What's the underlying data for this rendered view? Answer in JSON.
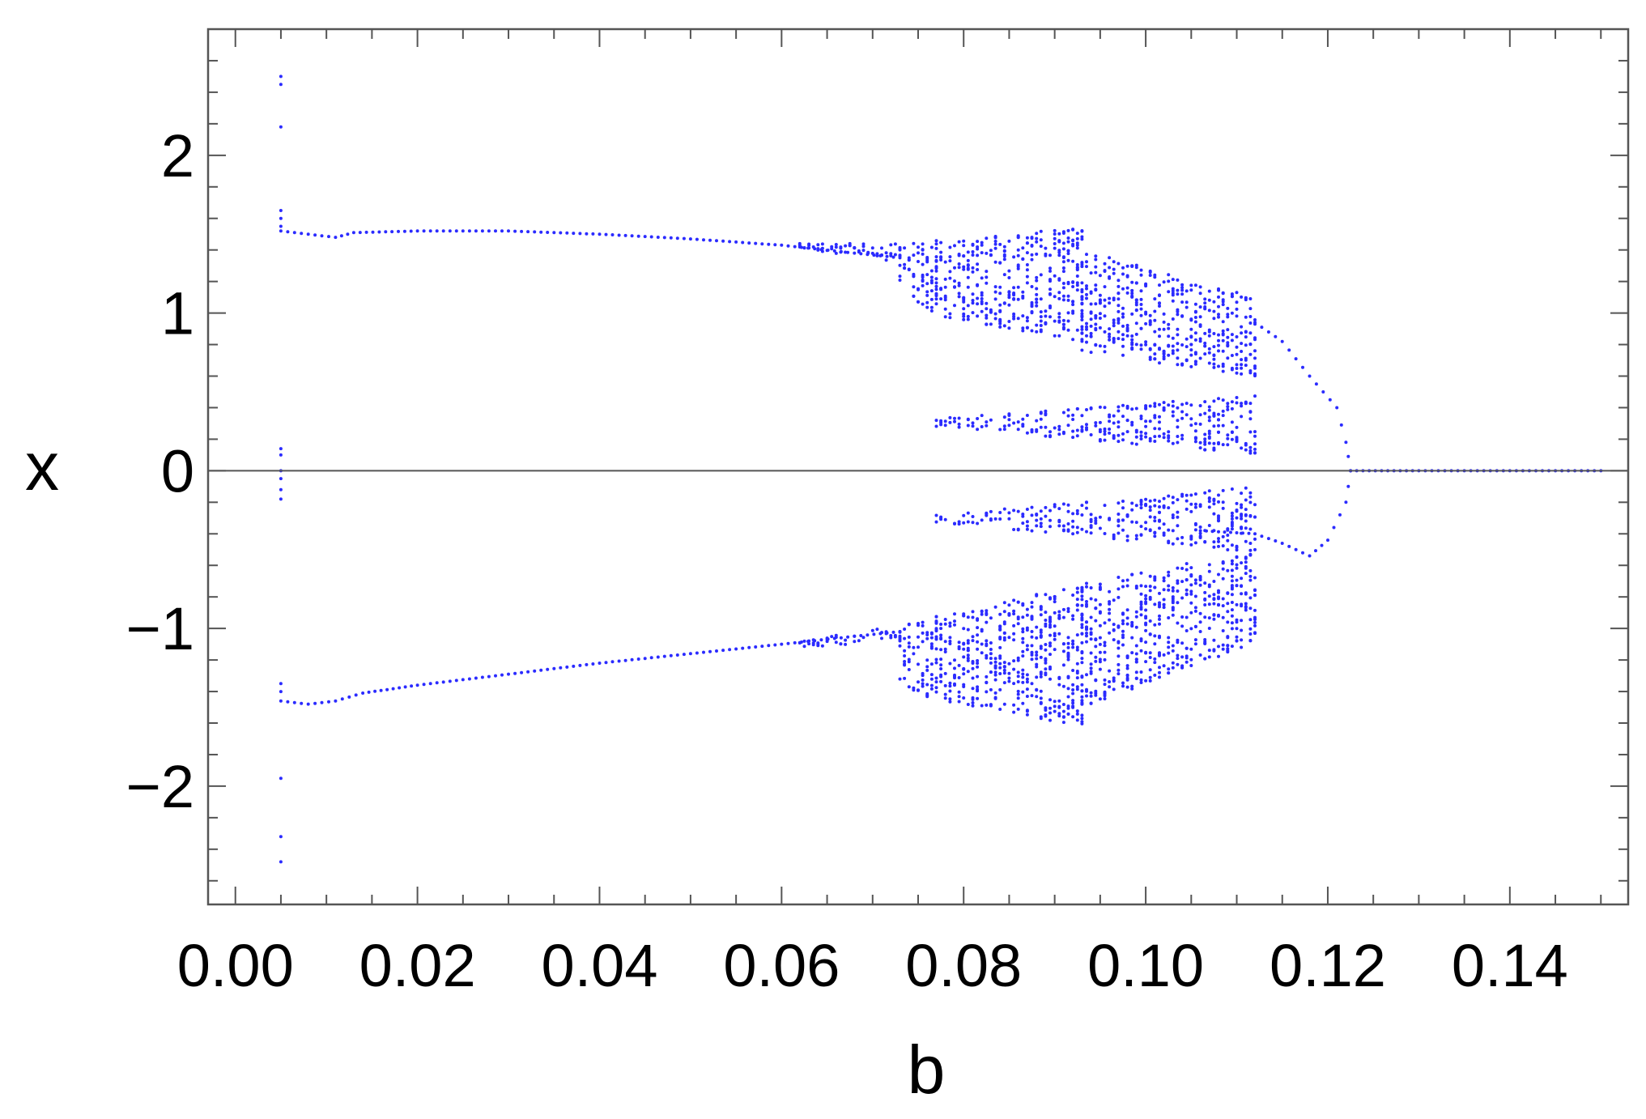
{
  "chart_data": {
    "type": "scatter",
    "title": "",
    "xlabel": "b",
    "ylabel": "x",
    "xlim": [
      -0.003,
      0.153
    ],
    "ylim": [
      -2.75,
      2.8
    ],
    "x_ticks": [
      0.0,
      0.02,
      0.04,
      0.06,
      0.08,
      0.1,
      0.12,
      0.14
    ],
    "x_tick_labels": [
      "0.00",
      "0.02",
      "0.04",
      "0.06",
      "0.08",
      "0.10",
      "0.12",
      "0.14"
    ],
    "y_ticks": [
      -2,
      -1,
      0,
      1,
      2
    ],
    "y_tick_labels": [
      "−2",
      "−1",
      "0",
      "1",
      "2"
    ],
    "grid": false,
    "legend": "none",
    "zero_line": true,
    "point_color": "#2b2bff",
    "series": [
      {
        "branches": [
          {
            "kind": "line",
            "points": [
              [
                0.005,
                1.52
              ],
              [
                0.008,
                1.5
              ],
              [
                0.011,
                1.48
              ],
              [
                0.013,
                1.51
              ],
              [
                0.02,
                1.52
              ],
              [
                0.03,
                1.52
              ],
              [
                0.04,
                1.5
              ],
              [
                0.05,
                1.47
              ],
              [
                0.06,
                1.43
              ],
              [
                0.068,
                1.38
              ],
              [
                0.073,
                1.35
              ]
            ]
          },
          {
            "kind": "line",
            "points": [
              [
                0.005,
                -1.46
              ],
              [
                0.008,
                -1.48
              ],
              [
                0.011,
                -1.46
              ],
              [
                0.014,
                -1.41
              ],
              [
                0.02,
                -1.36
              ],
              [
                0.03,
                -1.29
              ],
              [
                0.04,
                -1.22
              ],
              [
                0.05,
                -1.16
              ],
              [
                0.06,
                -1.1
              ],
              [
                0.068,
                -1.05
              ],
              [
                0.073,
                -1.02
              ]
            ]
          },
          {
            "kind": "line",
            "points": [
              [
                0.112,
                0.94
              ],
              [
                0.115,
                0.82
              ],
              [
                0.118,
                0.6
              ],
              [
                0.121,
                0.4
              ],
              [
                0.122,
                0.18
              ],
              [
                0.1225,
                0.0
              ]
            ]
          },
          {
            "kind": "line",
            "points": [
              [
                0.106,
                -0.38
              ],
              [
                0.112,
                -0.4
              ],
              [
                0.115,
                -0.46
              ],
              [
                0.118,
                -0.54
              ],
              [
                0.12,
                -0.44
              ],
              [
                0.122,
                -0.2
              ],
              [
                0.1225,
                0.0
              ]
            ]
          },
          {
            "kind": "line",
            "points": [
              [
                0.1225,
                0.0
              ],
              [
                0.13,
                0.0
              ],
              [
                0.14,
                0.0
              ],
              [
                0.15,
                0.0
              ]
            ]
          }
        ],
        "bands": [
          {
            "x": [
              0.062,
              0.073
            ],
            "top_hi": [
              1.44,
              1.44
            ],
            "top_lo": [
              1.41,
              1.32
            ],
            "bot_hi": [
              -1.08,
              -0.98
            ],
            "bot_lo": [
              -1.12,
              -1.08
            ]
          },
          {
            "x": [
              0.073,
              0.077
            ],
            "top_hi": [
              1.44,
              1.46
            ],
            "top_lo": [
              1.15,
              0.98
            ],
            "bot_hi": [
              -0.98,
              -0.92
            ],
            "bot_lo": [
              -1.42,
              -1.44
            ]
          },
          {
            "x": [
              0.077,
              0.093
            ],
            "top_hi": [
              1.46,
              1.55
            ],
            "top_lo": [
              0.98,
              0.82
            ],
            "bot_hi": [
              -0.92,
              -0.72
            ],
            "bot_lo": [
              -1.45,
              -1.62
            ]
          },
          {
            "x": [
              0.093,
              0.112
            ],
            "top_hi": [
              1.4,
              1.1
            ],
            "top_lo": [
              0.75,
              0.6
            ],
            "bot_hi": [
              -0.72,
              -0.5
            ],
            "bot_lo": [
              -1.5,
              -1.1
            ]
          },
          {
            "x": [
              0.077,
              0.112
            ],
            "top_hi": [
              0.33,
              0.48
            ],
            "top_lo": [
              0.28,
              0.1
            ],
            "bot_hi": [
              -0.28,
              -0.1
            ],
            "bot_lo": [
              -0.33,
              -0.52
            ]
          }
        ],
        "spikes": [
          {
            "x": 0.005,
            "y": [
              2.5,
              2.45,
              2.18,
              1.65,
              1.6,
              1.55,
              0.14,
              0.1,
              0.0,
              -0.05,
              -0.12,
              -0.18,
              -1.35,
              -1.4,
              -1.95,
              -2.32,
              -2.48
            ]
          }
        ]
      }
    ]
  }
}
